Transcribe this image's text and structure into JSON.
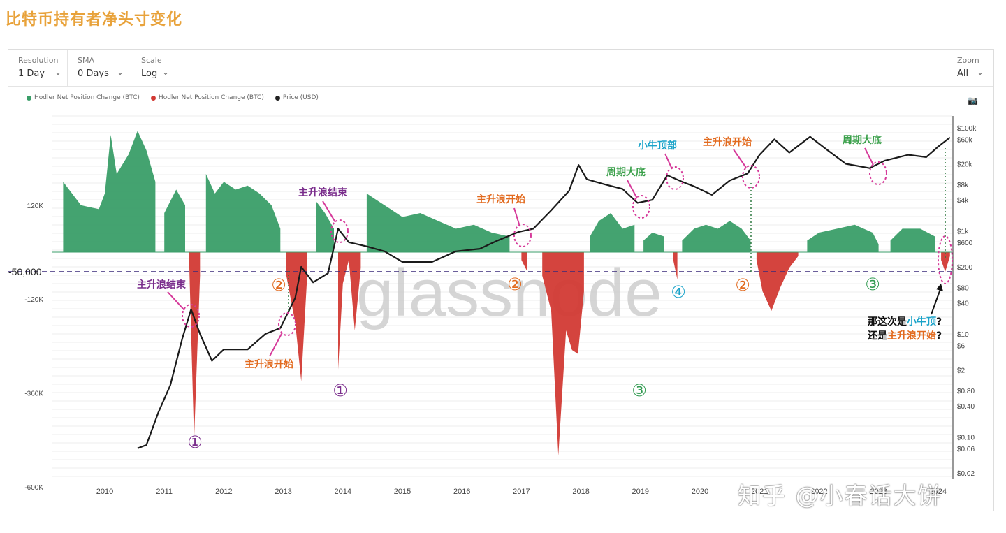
{
  "page": {
    "title": "比特币持有者净头寸变化"
  },
  "toolbar": {
    "resolution": {
      "label": "Resolution",
      "value": "1 Day"
    },
    "sma": {
      "label": "SMA",
      "value": "0 Days"
    },
    "scale": {
      "label": "Scale",
      "value": "Log"
    },
    "zoom": {
      "label": "Zoom",
      "value": "All"
    }
  },
  "legend": [
    {
      "name": "Hodler Net Position Change (BTC)",
      "color": "#3a9e68"
    },
    {
      "name": "Hodler Net Position Change (BTC)",
      "color": "#d23a34"
    },
    {
      "name": "Price (USD)",
      "color": "#222222"
    }
  ],
  "watermark": "glassnode",
  "footer_watermark": "知乎 @小春话大饼",
  "chart_data": {
    "type": "area",
    "x_ticks": [
      "2010",
      "2011",
      "2012",
      "2013",
      "2014",
      "2015",
      "2016",
      "2017",
      "2018",
      "2019",
      "2020",
      "2021",
      "2022",
      "2023",
      "2024"
    ],
    "left_axis": {
      "ticks": [
        "120K",
        "-120K",
        "-360K",
        "-600K"
      ],
      "values": [
        120000,
        -120000,
        -360000,
        -600000
      ],
      "ylim": [
        -620000,
        360000
      ],
      "unit": "BTC"
    },
    "right_axis": {
      "scale": "log",
      "ticks": [
        "$100k",
        "$60k",
        "$20k",
        "$8k",
        "$4k",
        "$1k",
        "$600",
        "$200",
        "$80",
        "$40",
        "$10",
        "$6",
        "$2",
        "$0.80",
        "$0.40",
        "$0.10",
        "$0.06",
        "$0.02"
      ],
      "values": [
        100000,
        60000,
        20000,
        8000,
        4000,
        1000,
        600,
        200,
        80,
        40,
        10,
        6,
        2,
        0.8,
        0.4,
        0.1,
        0.06,
        0.02
      ]
    },
    "reference_line": {
      "value": -50000,
      "label": "-50,000",
      "color": "#3a2a7a"
    },
    "net_position_series": [
      [
        2009.3,
        180000
      ],
      [
        2009.6,
        120000
      ],
      [
        2009.9,
        110000
      ],
      [
        2010.0,
        150000
      ],
      [
        2010.1,
        300000
      ],
      [
        2010.2,
        200000
      ],
      [
        2010.4,
        250000
      ],
      [
        2010.55,
        310000
      ],
      [
        2010.7,
        260000
      ],
      [
        2010.85,
        180000
      ],
      [
        2010.95,
        -30000
      ],
      [
        2011.0,
        100000
      ],
      [
        2011.2,
        160000
      ],
      [
        2011.35,
        120000
      ],
      [
        2011.42,
        -40000
      ],
      [
        2011.5,
        -480000
      ],
      [
        2011.6,
        -60000
      ],
      [
        2011.7,
        200000
      ],
      [
        2011.85,
        150000
      ],
      [
        2012.0,
        180000
      ],
      [
        2012.2,
        160000
      ],
      [
        2012.4,
        170000
      ],
      [
        2012.6,
        150000
      ],
      [
        2012.8,
        120000
      ],
      [
        2012.95,
        60000
      ],
      [
        2013.05,
        -60000
      ],
      [
        2013.2,
        -180000
      ],
      [
        2013.3,
        -330000
      ],
      [
        2013.4,
        -60000
      ],
      [
        2013.55,
        130000
      ],
      [
        2013.7,
        100000
      ],
      [
        2013.85,
        60000
      ],
      [
        2013.92,
        -300000
      ],
      [
        2014.0,
        -80000
      ],
      [
        2014.1,
        -20000
      ],
      [
        2014.2,
        -200000
      ],
      [
        2014.3,
        -40000
      ],
      [
        2014.4,
        150000
      ],
      [
        2014.6,
        130000
      ],
      [
        2014.8,
        110000
      ],
      [
        2015.0,
        90000
      ],
      [
        2015.3,
        100000
      ],
      [
        2015.6,
        80000
      ],
      [
        2015.9,
        60000
      ],
      [
        2016.2,
        70000
      ],
      [
        2016.5,
        50000
      ],
      [
        2016.8,
        40000
      ],
      [
        2017.0,
        -20000
      ],
      [
        2017.1,
        -50000
      ],
      [
        2017.2,
        10000
      ],
      [
        2017.35,
        -60000
      ],
      [
        2017.5,
        -150000
      ],
      [
        2017.62,
        -520000
      ],
      [
        2017.75,
        -200000
      ],
      [
        2017.85,
        -250000
      ],
      [
        2017.95,
        -260000
      ],
      [
        2018.05,
        -100000
      ],
      [
        2018.15,
        40000
      ],
      [
        2018.3,
        80000
      ],
      [
        2018.5,
        100000
      ],
      [
        2018.7,
        60000
      ],
      [
        2018.9,
        70000
      ],
      [
        2018.95,
        -300000
      ],
      [
        2019.05,
        30000
      ],
      [
        2019.2,
        50000
      ],
      [
        2019.4,
        40000
      ],
      [
        2019.55,
        -20000
      ],
      [
        2019.62,
        -70000
      ],
      [
        2019.7,
        30000
      ],
      [
        2019.9,
        60000
      ],
      [
        2020.1,
        70000
      ],
      [
        2020.3,
        60000
      ],
      [
        2020.5,
        80000
      ],
      [
        2020.7,
        60000
      ],
      [
        2020.85,
        30000
      ],
      [
        2020.95,
        -20000
      ],
      [
        2021.05,
        -100000
      ],
      [
        2021.2,
        -150000
      ],
      [
        2021.35,
        -90000
      ],
      [
        2021.5,
        -40000
      ],
      [
        2021.65,
        -10000
      ],
      [
        2021.8,
        30000
      ],
      [
        2022.0,
        50000
      ],
      [
        2022.3,
        60000
      ],
      [
        2022.6,
        70000
      ],
      [
        2022.9,
        50000
      ],
      [
        2023.0,
        20000
      ],
      [
        2023.05,
        -60000
      ],
      [
        2023.2,
        30000
      ],
      [
        2023.4,
        60000
      ],
      [
        2023.7,
        60000
      ],
      [
        2023.95,
        40000
      ],
      [
        2024.05,
        -20000
      ],
      [
        2024.12,
        -50000
      ],
      [
        2024.2,
        -10000
      ]
    ],
    "price_series": [
      [
        2010.55,
        0.06
      ],
      [
        2010.7,
        0.07
      ],
      [
        2010.9,
        0.3
      ],
      [
        2011.1,
        1
      ],
      [
        2011.3,
        8
      ],
      [
        2011.45,
        30
      ],
      [
        2011.6,
        10
      ],
      [
        2011.8,
        3
      ],
      [
        2012.0,
        5
      ],
      [
        2012.4,
        5
      ],
      [
        2012.7,
        10
      ],
      [
        2012.95,
        13
      ],
      [
        2013.2,
        50
      ],
      [
        2013.3,
        200
      ],
      [
        2013.5,
        100
      ],
      [
        2013.75,
        150
      ],
      [
        2013.92,
        1100
      ],
      [
        2014.1,
        600
      ],
      [
        2014.4,
        500
      ],
      [
        2014.7,
        400
      ],
      [
        2015.0,
        250
      ],
      [
        2015.5,
        250
      ],
      [
        2015.9,
        400
      ],
      [
        2016.3,
        450
      ],
      [
        2016.6,
        650
      ],
      [
        2016.95,
        950
      ],
      [
        2017.2,
        1100
      ],
      [
        2017.5,
        2500
      ],
      [
        2017.8,
        6000
      ],
      [
        2017.96,
        19000
      ],
      [
        2018.1,
        10000
      ],
      [
        2018.4,
        8000
      ],
      [
        2018.7,
        6500
      ],
      [
        2018.95,
        3500
      ],
      [
        2019.2,
        4000
      ],
      [
        2019.45,
        12000
      ],
      [
        2019.7,
        9000
      ],
      [
        2019.9,
        7300
      ],
      [
        2020.2,
        5000
      ],
      [
        2020.5,
        9500
      ],
      [
        2020.8,
        13000
      ],
      [
        2021.0,
        30000
      ],
      [
        2021.25,
        60000
      ],
      [
        2021.5,
        33000
      ],
      [
        2021.85,
        67000
      ],
      [
        2022.1,
        40000
      ],
      [
        2022.45,
        20000
      ],
      [
        2022.85,
        16500
      ],
      [
        2023.1,
        23000
      ],
      [
        2023.5,
        30000
      ],
      [
        2023.8,
        27000
      ],
      [
        2024.0,
        43000
      ],
      [
        2024.2,
        65000
      ]
    ],
    "annotations": [
      {
        "text": "主升浪结束",
        "color": "#7a2d8c"
      },
      {
        "text": "主升浪开始",
        "color": "#e26a1e"
      },
      {
        "text": "主升浪结束",
        "color": "#7a2d8c"
      },
      {
        "text": "主升浪开始",
        "color": "#e26a1e"
      },
      {
        "text": "周期大底",
        "color": "#3aa04a"
      },
      {
        "text": "小牛顶部",
        "color": "#1aa3c9"
      },
      {
        "text": "主升浪开始",
        "color": "#e26a1e"
      },
      {
        "text": "周期大底",
        "color": "#3aa04a"
      }
    ],
    "markers": [
      {
        "text": "①",
        "color": "#7a2d8c"
      },
      {
        "text": "②",
        "color": "#e26a1e"
      },
      {
        "text": "①",
        "color": "#7a2d8c"
      },
      {
        "text": "②",
        "color": "#e26a1e"
      },
      {
        "text": "③",
        "color": "#2f9a4f"
      },
      {
        "text": "④",
        "color": "#1aa3c9"
      },
      {
        "text": "②",
        "color": "#e26a1e"
      },
      {
        "text": "③",
        "color": "#2f9a4f"
      }
    ],
    "question": {
      "line1": [
        "那这次是",
        "小牛顶",
        "?"
      ],
      "line2": [
        "还是",
        "主升浪开始",
        "?"
      ]
    }
  }
}
